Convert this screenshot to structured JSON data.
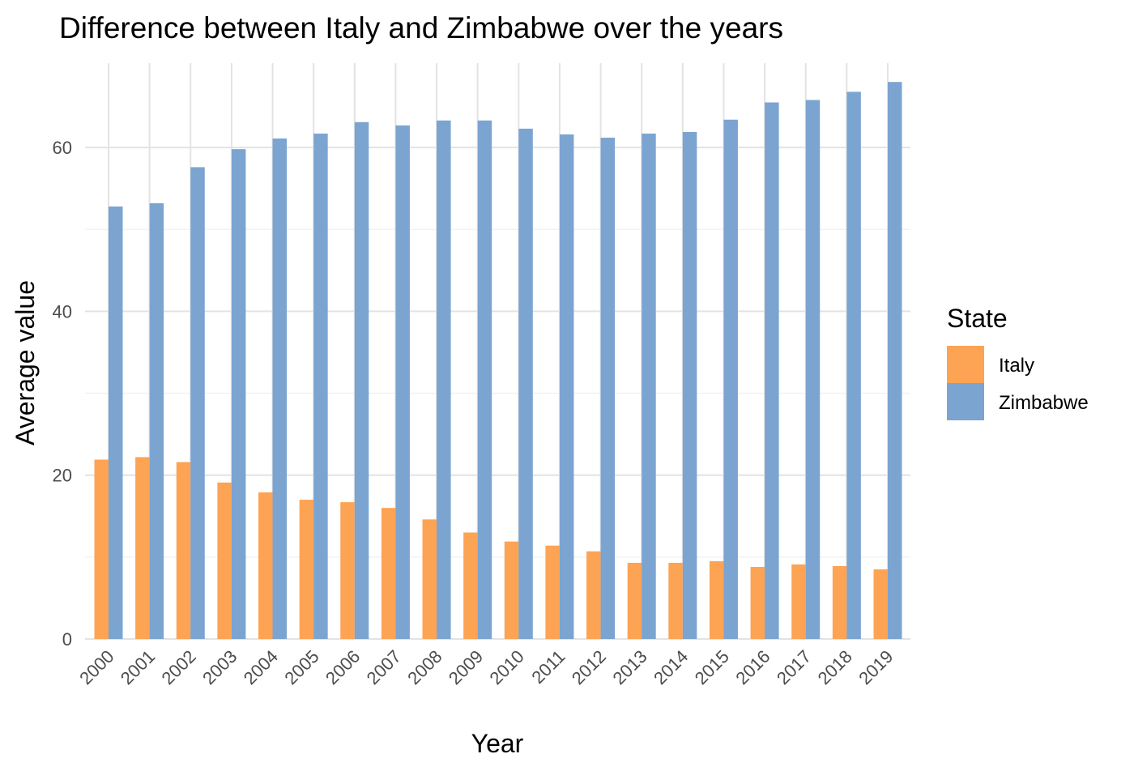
{
  "chart_data": {
    "type": "bar",
    "title": "Difference between Italy and Zimbabwe over the years",
    "xlabel": "Year",
    "ylabel": "Average value",
    "categories": [
      "2000",
      "2001",
      "2002",
      "2003",
      "2004",
      "2005",
      "2006",
      "2007",
      "2008",
      "2009",
      "2010",
      "2011",
      "2012",
      "2013",
      "2014",
      "2015",
      "2016",
      "2017",
      "2018",
      "2019"
    ],
    "series": [
      {
        "name": "Italy",
        "color": "#FDA354",
        "values": [
          21.9,
          22.2,
          21.6,
          19.1,
          17.9,
          17.0,
          16.7,
          16.0,
          14.6,
          13.0,
          11.9,
          11.4,
          10.7,
          9.3,
          9.3,
          9.5,
          8.8,
          9.1,
          8.9,
          8.5
        ]
      },
      {
        "name": "Zimbabwe",
        "color": "#7BA4D1",
        "values": [
          52.8,
          53.2,
          57.6,
          59.8,
          61.1,
          61.7,
          63.1,
          62.7,
          63.3,
          63.3,
          62.3,
          61.6,
          61.2,
          61.7,
          61.9,
          63.4,
          65.5,
          65.8,
          66.8,
          68.0
        ]
      }
    ],
    "ylim": [
      0,
      70
    ],
    "yticks": [
      0,
      20,
      40,
      60
    ],
    "grid": true,
    "legend": {
      "title": "State",
      "position": "right"
    }
  }
}
